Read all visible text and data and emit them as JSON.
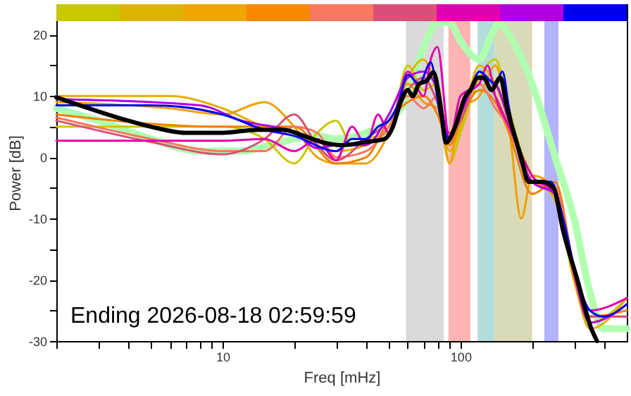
{
  "chart_data": {
    "type": "line",
    "xlabel": "Freq [mHz]",
    "ylabel": "Power [dB]",
    "log": "x",
    "xlim": [
      2,
      500
    ],
    "ylim": [
      -30,
      25
    ],
    "xticks": [
      {
        "value": 2,
        "label": null
      },
      {
        "value": 3,
        "label": null
      },
      {
        "value": 4,
        "label": null
      },
      {
        "value": 5,
        "label": null
      },
      {
        "value": 6,
        "label": null
      },
      {
        "value": 7,
        "label": null
      },
      {
        "value": 8,
        "label": null
      },
      {
        "value": 9,
        "label": null
      },
      10,
      {
        "value": 20,
        "label": null
      },
      {
        "value": 30,
        "label": null
      },
      {
        "value": 40,
        "label": null
      },
      {
        "value": 50,
        "label": null
      },
      {
        "value": 60,
        "label": null
      },
      {
        "value": 70,
        "label": null
      },
      {
        "value": 80,
        "label": null
      },
      {
        "value": 90,
        "label": null
      },
      100,
      {
        "value": 200,
        "label": null
      },
      {
        "value": 300,
        "label": null
      },
      {
        "value": 400,
        "label": null
      }
    ],
    "yticks": [
      -30,
      {
        "value": -25,
        "label": null
      },
      -20,
      {
        "value": -15,
        "label": null
      },
      -10,
      {
        "value": -5,
        "label": null
      },
      0,
      {
        "value": 5,
        "label": null
      },
      10,
      {
        "value": 15,
        "label": null
      },
      20
    ],
    "grid": false,
    "marker": "none",
    "line_style": "solid",
    "annotations": [
      "Ending 2026-08-18 02:59:59"
    ],
    "bands": [
      {
        "axis": "x",
        "from": 59,
        "to": 85,
        "color": "#dadada"
      },
      {
        "axis": "x",
        "from": 89,
        "to": 110,
        "color": "#ffb3b3"
      },
      {
        "axis": "x",
        "from": 118,
        "to": 139,
        "color": "#b3dcdc"
      },
      {
        "axis": "x",
        "from": 139,
        "to": 200,
        "color": "#dadab8"
      },
      {
        "axis": "x",
        "from": 225,
        "to": 258,
        "color": "#b3b3ff"
      }
    ],
    "series": [
      {
        "color": "#b0ffb0",
        "x": [
          2,
          3,
          5,
          8,
          12,
          16,
          20,
          25,
          30,
          40,
          50,
          60,
          70,
          80,
          90,
          100,
          120,
          135,
          145,
          160,
          200,
          250,
          300,
          350,
          400,
          500
        ],
        "values": [
          8,
          6,
          3,
          1,
          1,
          2,
          3,
          3.5,
          3,
          4,
          6,
          10,
          18,
          22,
          22,
          19,
          16,
          20,
          22,
          20,
          12,
          0,
          -10,
          -22,
          -28,
          -28
        ]
      },
      {
        "color": "#c8c800",
        "x": [
          2,
          10,
          15,
          20,
          25,
          30,
          35,
          40,
          50,
          60,
          70,
          80,
          90,
          100,
          120,
          140,
          160,
          200,
          250,
          300,
          350,
          500
        ],
        "values": [
          5,
          5,
          3,
          -1,
          4,
          6,
          2,
          3,
          4,
          15,
          11,
          12,
          -1,
          4,
          13,
          16,
          8,
          -4,
          -6,
          -20,
          -27,
          -23
        ]
      },
      {
        "color": "#e0b000",
        "x": [
          2,
          6,
          10,
          15,
          20,
          30,
          40,
          50,
          60,
          70,
          80,
          90,
          100,
          120,
          140,
          160,
          200,
          250,
          300,
          350,
          500
        ],
        "values": [
          10,
          10,
          8,
          5,
          4,
          1,
          2,
          5,
          13,
          16,
          10,
          1,
          5,
          15,
          12,
          6,
          -3,
          -7,
          -20,
          -28,
          -23
        ]
      },
      {
        "color": "#f0a000",
        "x": [
          2,
          6,
          10,
          15,
          20,
          25,
          30,
          40,
          50,
          60,
          70,
          80,
          90,
          100,
          120,
          140,
          160,
          180,
          200,
          250,
          300,
          350,
          500
        ],
        "values": [
          9,
          8,
          7,
          9,
          5,
          0,
          -1,
          -1,
          4,
          12,
          9,
          8,
          -1,
          8,
          10,
          15,
          5,
          -10,
          -3,
          -5,
          -20,
          -27,
          -24
        ]
      },
      {
        "color": "#f08000",
        "x": [
          2,
          10,
          20,
          30,
          40,
          50,
          60,
          70,
          80,
          90,
          100,
          120,
          140,
          160,
          200,
          250,
          300,
          350,
          500
        ],
        "values": [
          7,
          5,
          5,
          -1,
          0,
          6,
          9,
          10,
          7,
          2,
          6,
          11,
          9,
          4,
          -6,
          -4,
          -18,
          -26,
          -25
        ]
      },
      {
        "color": "#f87860",
        "x": [
          2,
          5,
          10,
          15,
          20,
          25,
          30,
          40,
          50,
          60,
          70,
          80,
          90,
          100,
          120,
          140,
          160,
          200,
          250,
          300,
          350,
          500
        ],
        "values": [
          6.5,
          3,
          1,
          1,
          5,
          4,
          0,
          1,
          5,
          10,
          8,
          10,
          3,
          7,
          12,
          8,
          5,
          -4,
          -5,
          -18,
          -26,
          -26
        ]
      },
      {
        "color": "#d85078",
        "x": [
          2,
          5,
          10,
          15,
          20,
          25,
          30,
          40,
          50,
          60,
          70,
          80,
          90,
          100,
          120,
          140,
          160,
          200,
          250,
          300,
          350,
          500
        ],
        "values": [
          6,
          2.5,
          0.5,
          3,
          7,
          2,
          -0.5,
          3,
          6,
          11,
          13,
          9,
          4,
          6,
          13,
          10,
          5,
          -4,
          -6,
          -18,
          -26,
          -26
        ]
      },
      {
        "color": "#e000b0",
        "x": [
          2,
          10,
          15,
          20,
          25,
          30,
          35,
          40,
          45,
          50,
          60,
          70,
          75,
          80,
          90,
          100,
          120,
          130,
          140,
          160,
          200,
          250,
          300,
          350,
          500
        ],
        "values": [
          2.7,
          2.7,
          3,
          1,
          3,
          -0.5,
          5,
          2,
          7,
          4,
          14,
          10,
          16,
          18,
          3,
          10,
          12,
          15,
          10,
          5,
          -3,
          -6,
          -18,
          -25,
          -23
        ]
      },
      {
        "color": "#b000e0",
        "x": [
          2,
          8,
          12,
          20,
          25,
          30,
          40,
          50,
          60,
          70,
          80,
          90,
          100,
          120,
          140,
          160,
          200,
          250,
          300,
          350,
          500
        ],
        "values": [
          9.5,
          8.5,
          6,
          4,
          1.5,
          2,
          2,
          7,
          13,
          14,
          11,
          3,
          7,
          13,
          12,
          6,
          -4,
          -6,
          -19,
          -27,
          -24
        ]
      },
      {
        "color": "#0000f0",
        "x": [
          2,
          5,
          10,
          15,
          20,
          30,
          35,
          40,
          45,
          50,
          55,
          60,
          67,
          75,
          82,
          90,
          100,
          110,
          120,
          140,
          150,
          160,
          180,
          200,
          240,
          270,
          310,
          350,
          400,
          500
        ],
        "values": [
          8.5,
          8.5,
          7,
          4.5,
          3.5,
          1,
          3,
          3,
          5,
          6,
          9,
          13.5,
          12,
          15.5,
          7,
          3,
          8,
          11,
          14,
          12,
          14,
          8,
          -1,
          -4,
          -4,
          -10,
          -20,
          -25,
          -26,
          -24
        ]
      },
      {
        "color": "#000000",
        "x": [
          2,
          3,
          4,
          5,
          7,
          10,
          14,
          18,
          22,
          26,
          32,
          40,
          48,
          52,
          56,
          60,
          63,
          67,
          72,
          77,
          82,
          87,
          95,
          105,
          110,
          118,
          125,
          135,
          147,
          157,
          180,
          193,
          220,
          246,
          270,
          310,
          355,
          375
        ],
        "values": [
          9.8,
          7.5,
          6,
          5,
          4,
          4,
          4.5,
          4.5,
          3.5,
          2.5,
          2,
          2.5,
          3,
          5,
          9,
          11,
          10,
          12,
          12.5,
          13.9,
          9,
          2.4,
          5,
          10,
          11,
          13,
          13,
          11,
          13,
          8,
          0,
          -4,
          -4,
          -5,
          -12,
          -20,
          -28,
          -30
        ]
      }
    ]
  }
}
